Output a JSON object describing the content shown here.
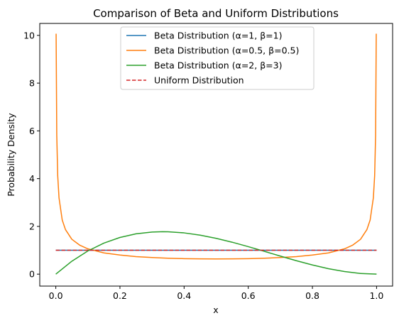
{
  "chart_data": {
    "type": "line",
    "title": "Comparison of Beta and Uniform Distributions",
    "xlabel": "x",
    "ylabel": "Probability Density",
    "xlim": [
      -0.05,
      1.05
    ],
    "ylim": [
      -0.5,
      10.5
    ],
    "xticks": [
      0.0,
      0.2,
      0.4,
      0.6,
      0.8,
      1.0
    ],
    "xtick_labels": [
      "0.0",
      "0.2",
      "0.4",
      "0.6",
      "0.8",
      "1.0"
    ],
    "yticks": [
      0,
      2,
      4,
      6,
      8,
      10
    ],
    "ytick_labels": [
      "0",
      "2",
      "4",
      "6",
      "8",
      "10"
    ],
    "grid": false,
    "legend_position": "top-center",
    "series": [
      {
        "name": "Beta Distribution (α=1, β=1)",
        "color": "#1f77b4",
        "dash": "solid",
        "x": [
          0.0,
          0.1,
          0.2,
          0.3,
          0.4,
          0.5,
          0.6,
          0.7,
          0.8,
          0.9,
          1.0
        ],
        "y": [
          1.0,
          1.0,
          1.0,
          1.0,
          1.0,
          1.0,
          1.0,
          1.0,
          1.0,
          1.0,
          1.0
        ]
      },
      {
        "name": "Beta Distribution (α=0.5, β=0.5)",
        "color": "#ff7f0e",
        "dash": "solid",
        "x": [
          0.001,
          0.003,
          0.006,
          0.01,
          0.02,
          0.03,
          0.05,
          0.075,
          0.1,
          0.15,
          0.2,
          0.25,
          0.3,
          0.35,
          0.4,
          0.45,
          0.5,
          0.55,
          0.6,
          0.65,
          0.7,
          0.75,
          0.8,
          0.85,
          0.9,
          0.925,
          0.95,
          0.97,
          0.98,
          0.99,
          0.994,
          0.997,
          0.999
        ],
        "y": [
          10.07,
          5.82,
          4.12,
          3.2,
          2.27,
          1.87,
          1.46,
          1.21,
          1.06,
          0.89,
          0.8,
          0.735,
          0.695,
          0.667,
          0.65,
          0.64,
          0.637,
          0.64,
          0.65,
          0.667,
          0.695,
          0.735,
          0.8,
          0.89,
          1.06,
          1.21,
          1.46,
          1.87,
          2.27,
          3.2,
          4.12,
          5.82,
          10.07
        ]
      },
      {
        "name": "Beta Distribution (α=2, β=3)",
        "color": "#2ca02c",
        "dash": "solid",
        "x": [
          0.0,
          0.05,
          0.1,
          0.15,
          0.2,
          0.25,
          0.3,
          0.333,
          0.35,
          0.4,
          0.45,
          0.5,
          0.55,
          0.6,
          0.65,
          0.7,
          0.75,
          0.8,
          0.85,
          0.9,
          0.95,
          1.0
        ],
        "y": [
          0.0,
          0.542,
          0.972,
          1.301,
          1.536,
          1.688,
          1.764,
          1.778,
          1.775,
          1.728,
          1.634,
          1.5,
          1.337,
          1.152,
          0.956,
          0.756,
          0.5625,
          0.384,
          0.2295,
          0.108,
          0.0285,
          0.0
        ]
      },
      {
        "name": "Uniform Distribution",
        "color": "#d62728",
        "dash": "dashed",
        "x": [
          0.0,
          1.0
        ],
        "y": [
          1.0,
          1.0
        ]
      }
    ]
  }
}
